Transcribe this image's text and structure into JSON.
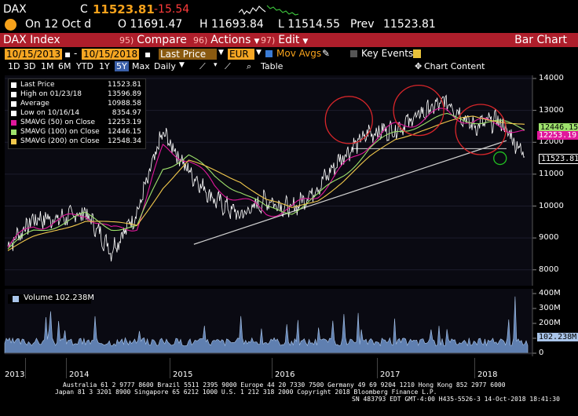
{
  "quote": {
    "ticker": "DAX",
    "c_label": "C",
    "last": "11523.81",
    "change": "-15.54",
    "on_date": "On 12 Oct d",
    "open": "O 11691.47",
    "high": "H 11693.84",
    "low": "L 11514.55",
    "prev_label": "Prev",
    "prev": "11523.81"
  },
  "header": {
    "security": "DAX Index",
    "compare_num": "95)",
    "compare": "Compare",
    "actions_num": "96)",
    "actions": "Actions",
    "edit_num": "97)",
    "edit": "Edit",
    "chart_type": "Bar Chart"
  },
  "toolbar": {
    "start_date": "10/15/2013",
    "end_date": "10/15/2018",
    "field": "Last Price",
    "currency": "EUR",
    "mov_avgs": "Mov Avgs",
    "key_events": "Key Events",
    "periods": [
      "1D",
      "3D",
      "1M",
      "6M",
      "YTD",
      "1Y",
      "5Y",
      "Max"
    ],
    "active_period": "5Y",
    "frequency": "Daily",
    "table": "Table",
    "chart_content": "Chart Content"
  },
  "legend": [
    {
      "label": "Last Price",
      "value": "11523.81",
      "color": "#ffffff"
    },
    {
      "label": "High on 01/23/18",
      "value": "13596.89",
      "color": "#ffffff"
    },
    {
      "label": "Average",
      "value": "10988.58",
      "color": "#ffffff"
    },
    {
      "label": "Low on 10/16/14",
      "value": "8354.97",
      "color": "#ffffff"
    },
    {
      "label": "SMAVG (50)  on Close",
      "value": "12253.19",
      "color": "#e0189b"
    },
    {
      "label": "SMAVG (100)  on Close",
      "value": "12446.15",
      "color": "#9ee26c"
    },
    {
      "label": "SMAVG (200)  on Close",
      "value": "12548.34",
      "color": "#f2c94c"
    }
  ],
  "price_axis": {
    "ticks": [
      "14000",
      "13000",
      "12000",
      "11000",
      "10000",
      "9000",
      "8000"
    ]
  },
  "right_tags": {
    "sma100": "12446.15",
    "sma50": "12253.19",
    "last": "11523.81"
  },
  "volume_legend": {
    "label": "Volume",
    "value": "102.238M"
  },
  "volume_axis": {
    "ticks": [
      "400M",
      "300M",
      "200M",
      "100M",
      "0"
    ],
    "tag": "102.238M"
  },
  "x_axis": {
    "labels": [
      "2013",
      "2014",
      "2015",
      "2016",
      "2017",
      "2018"
    ]
  },
  "footer": {
    "line1": "Australia 61 2 9777 8600 Brazil 5511 2395 9000 Europe 44 20 7330 7500 Germany 49 69 9204 1210 Hong Kong 852 2977 6000",
    "line2": "Japan 81 3 3201 8900         Singapore 65 6212 1000         U.S. 1 212 318 2000            Copyright 2018 Bloomberg Finance L.P.",
    "line3": "SN 483793 EDT  GMT-4:00 H435-5526-3 14-Oct-2018 18:41:30"
  },
  "chart_data": {
    "type": "line",
    "title": "",
    "xlabel": "",
    "ylabel": "",
    "ylim": [
      7600,
      14000
    ],
    "x": [
      "2013-10",
      "2014-01",
      "2014-04",
      "2014-07",
      "2014-10",
      "2015-01",
      "2015-04",
      "2015-07",
      "2015-10",
      "2016-01",
      "2016-04",
      "2016-07",
      "2016-10",
      "2017-01",
      "2017-04",
      "2017-07",
      "2017-10",
      "2018-01",
      "2018-04",
      "2018-07",
      "2018-10"
    ],
    "series": [
      {
        "name": "Last Price",
        "values": [
          8750,
          9600,
          9600,
          9800,
          8600,
          9800,
          12300,
          11100,
          10200,
          9700,
          10200,
          9900,
          10600,
          11600,
          12300,
          12400,
          12900,
          13300,
          12500,
          12700,
          11600
        ]
      },
      {
        "name": "SMAVG (50) on Close",
        "values": [
          8700,
          9400,
          9500,
          9800,
          9200,
          9400,
          11800,
          11500,
          10600,
          10200,
          9800,
          9900,
          10400,
          11200,
          12000,
          12500,
          12700,
          13000,
          12600,
          12600,
          12253
        ]
      },
      {
        "name": "SMAVG (100) on Close",
        "values": [
          8650,
          9200,
          9450,
          9700,
          9350,
          9300,
          11200,
          11600,
          10900,
          10500,
          9900,
          9850,
          10300,
          11000,
          11800,
          12300,
          12600,
          12800,
          12700,
          12600,
          12446
        ]
      },
      {
        "name": "SMAVG (200) on Close",
        "values": [
          8600,
          9000,
          9300,
          9550,
          9450,
          9400,
          10600,
          11400,
          11100,
          10800,
          10200,
          9900,
          10200,
          10800,
          11500,
          12100,
          12400,
          12600,
          12800,
          12700,
          12548
        ]
      }
    ],
    "volume": {
      "name": "Volume",
      "ylim": [
        0,
        400
      ],
      "typical": 90,
      "last": 102.238,
      "peak": 380
    }
  }
}
